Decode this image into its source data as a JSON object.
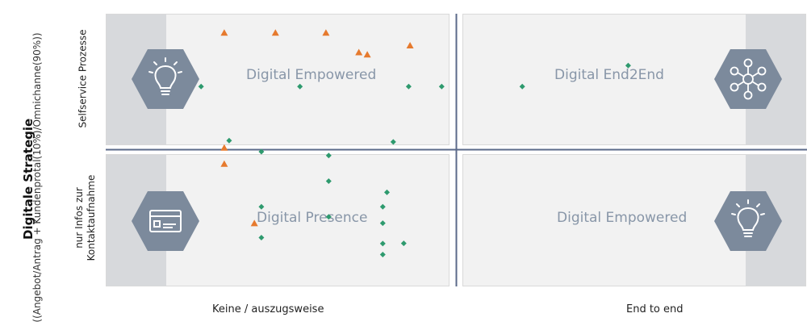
{
  "y_axis": {
    "title": "Digitale Strategie",
    "subtitle": "((Angebot/Antrag + Kundenprotal(10%)/Omnichanne(90%))",
    "ticks": {
      "top": "Selfservice Prozesse",
      "bottom_line1": "nur Infos zur",
      "bottom_line2": "Kontaktaufnahme"
    }
  },
  "x_axis": {
    "ticks": {
      "left": "Keine / auszugsweise",
      "right": "End to end"
    }
  },
  "quadrants": {
    "top_left": {
      "label": "Digital Empowered",
      "icon": "lightbulb-icon"
    },
    "top_right": {
      "label": "Digital End2End",
      "icon": "network-icon"
    },
    "bottom_left": {
      "label": "Digital Presence",
      "icon": "credit-card-icon"
    },
    "bottom_right": {
      "label": "Digital Empowered",
      "icon": "lightbulb-icon"
    }
  },
  "colors": {
    "quadrant_bg": "#f2f2f2",
    "side_band": "#d7d9dc",
    "hexagon": "#7c8a9c",
    "axis_line": "#5b6a8a",
    "green_marker": "#2e9a6e",
    "orange_marker": "#e67a2e"
  },
  "chart_data": {
    "type": "scatter",
    "xlim": [
      0,
      100
    ],
    "ylim": [
      0,
      100
    ],
    "series": [
      {
        "marker": "diamond",
        "color": "#2e9a6e",
        "points": [
          {
            "x": 31.8,
            "y": 38.6
          },
          {
            "x": 39.5,
            "y": 29.2
          },
          {
            "x": 22.2,
            "y": 29.2
          },
          {
            "x": 39.5,
            "y": 23.2
          },
          {
            "x": 22.2,
            "y": 17.9
          },
          {
            "x": 40.1,
            "y": 34.5
          },
          {
            "x": 39.5,
            "y": 11.7
          },
          {
            "x": 31.8,
            "y": 25.5
          },
          {
            "x": 39.5,
            "y": 15.7
          },
          {
            "x": 42.5,
            "y": 15.8
          },
          {
            "x": 17.6,
            "y": 53.5
          },
          {
            "x": 41.0,
            "y": 53.0
          },
          {
            "x": 31.8,
            "y": 48.0
          },
          {
            "x": 22.2,
            "y": 49.4
          },
          {
            "x": 13.6,
            "y": 73.3
          },
          {
            "x": 27.7,
            "y": 73.3
          },
          {
            "x": 43.2,
            "y": 73.3
          },
          {
            "x": 59.4,
            "y": 73.3
          },
          {
            "x": 47.9,
            "y": 73.3
          },
          {
            "x": 74.5,
            "y": 81.0
          }
        ]
      },
      {
        "marker": "triangle",
        "color": "#e67a2e",
        "points": [
          {
            "x": 16.9,
            "y": 50.8
          },
          {
            "x": 21.2,
            "y": 23.1
          },
          {
            "x": 16.9,
            "y": 44.9
          },
          {
            "x": 36.1,
            "y": 85.8
          },
          {
            "x": 43.4,
            "y": 88.3
          },
          {
            "x": 37.3,
            "y": 85.0
          },
          {
            "x": 16.9,
            "y": 93.0
          },
          {
            "x": 24.2,
            "y": 93.0
          },
          {
            "x": 31.4,
            "y": 93.0
          }
        ]
      }
    ]
  }
}
